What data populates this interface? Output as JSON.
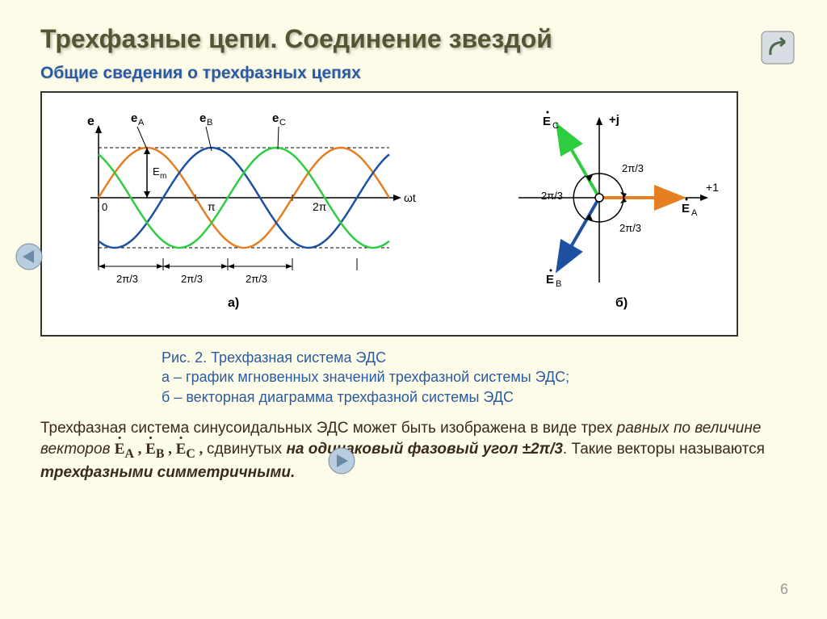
{
  "title": "Трехфазные цепи. Соединение звездой",
  "subtitle": "Общие сведения о трехфазных цепях",
  "caption": {
    "l1": "Рис. 2. Трехфазная система ЭДС",
    "l2": "а – график мгновенных значений трехфазной системы ЭДС;",
    "l3": "б – векторная диаграмма трехфазной системы ЭДС"
  },
  "body": {
    "p1a": "Трехфазная система синусоидальных ЭДС может быть изображена в виде трех ",
    "p1b": "равных по величине векторов",
    "vec": "Ė_A , Ė_B , Ė_C ,",
    "p1c": " сдвинутых ",
    "p1d": "на одинаковый фазовый угол ±2π/3",
    "p1e": ". Такие векторы называются ",
    "p1f": "трехфазными симметричными."
  },
  "slide_num": "6",
  "chart_a": {
    "type": "sinusoid-3phase",
    "ylabel": "e",
    "series": [
      {
        "name": "e_A",
        "color": "#e67e22",
        "phase": 0
      },
      {
        "name": "e_B",
        "color": "#1e50a2",
        "phase": -2.0944
      },
      {
        "name": "e_C",
        "color": "#2ecc40",
        "phase": 2.0944
      }
    ],
    "xlabel": "ωt",
    "amplitude_label": "E_m",
    "x_ticks": [
      "0",
      "π",
      "2π"
    ],
    "phase_spacing_label": "2π/3",
    "axis_color": "#000000",
    "grid_dash": "4 3",
    "panel_label": "а)"
  },
  "chart_b": {
    "type": "phasor",
    "axis_labels": {
      "y": "+j",
      "x": "+1"
    },
    "vectors": [
      {
        "name": "Ė_A",
        "color": "#e67e22",
        "angle": 0
      },
      {
        "name": "Ė_B",
        "color": "#1e50a2",
        "angle": -120
      },
      {
        "name": "Ė_C",
        "color": "#2ecc40",
        "angle": 120
      }
    ],
    "angle_label": "2π/3",
    "panel_label": "б)"
  },
  "style": {
    "bg": "#fdfce8",
    "title_color": "#555533",
    "subtitle_color": "#2c5aa0",
    "body_color": "#3a2a1a",
    "figure_border": "#333333",
    "title_fontsize": 32,
    "subtitle_fontsize": 21,
    "body_fontsize": 19
  }
}
